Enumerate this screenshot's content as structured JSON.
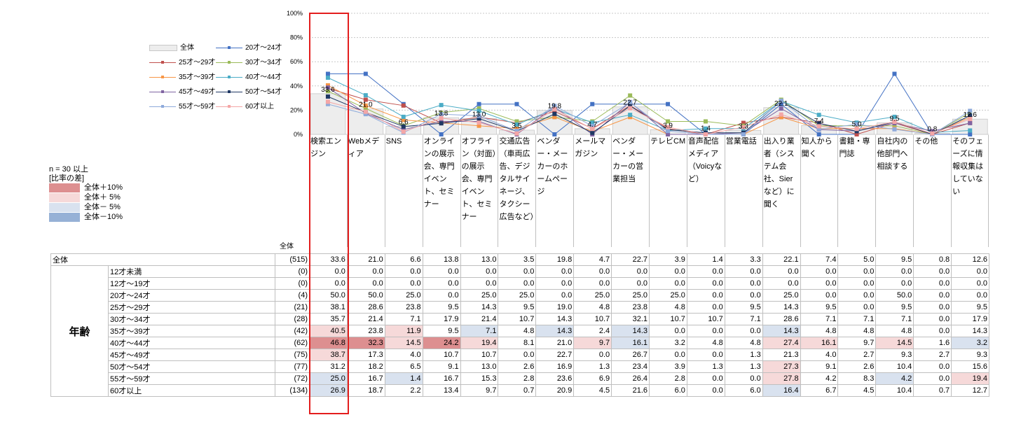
{
  "chart_data": {
    "type": "bar",
    "ylim": [
      0,
      100
    ],
    "yticks": [
      "100%",
      "80%",
      "60%",
      "40%",
      "20%",
      "0%"
    ],
    "categories": [
      "検索エンジン",
      "Webメディア",
      "SNS",
      "オンラインの展示会、専門イベント、セミナー",
      "オフライン（対面）の展示会、専門イベント、セミナー",
      "交通広告（車両広告、デジタルサイネージ、タクシー広告など）",
      "ベンダー・メーカーのホームページ",
      "メールマガジン",
      "ベンダー・メーカーの営業担当",
      "テレビCM",
      "音声配信メディア（Voicyなど）",
      "営業電話",
      "出入り業者（システム会社、Sierなど）に聞く",
      "知人から聞く",
      "書籍・専門誌",
      "自社内の他部門へ相談する",
      "その他",
      "そのフェーズに情報収集はしていない"
    ],
    "overall": {
      "name": "全体",
      "values": [
        33.6,
        21.0,
        6.6,
        13.8,
        13.0,
        3.5,
        19.8,
        4.7,
        22.7,
        3.9,
        1.4,
        3.3,
        22.1,
        7.4,
        5.0,
        9.5,
        0.8,
        12.6
      ]
    },
    "overall_labels": [
      "33.6",
      "21.0",
      "6.6",
      "13.8",
      "13.0",
      "3.5",
      "19.8",
      "4.7",
      "22.7",
      "3.9",
      "1.4",
      "3.3",
      "22.1",
      "7.4",
      "5.0",
      "9.5",
      "0.8",
      "12.6"
    ],
    "series": [
      {
        "name": "20才～24才",
        "color": "#4472c4",
        "values": [
          50.0,
          50.0,
          25.0,
          0.0,
          25.0,
          25.0,
          0.0,
          25.0,
          25.0,
          25.0,
          0.0,
          0.0,
          25.0,
          0.0,
          0.0,
          50.0,
          0.0,
          0.0
        ]
      },
      {
        "name": "25才～29才",
        "color": "#c0504d",
        "values": [
          38.1,
          28.6,
          23.8,
          9.5,
          14.3,
          9.5,
          19.0,
          4.8,
          23.8,
          4.8,
          0.0,
          9.5,
          14.3,
          9.5,
          0.0,
          9.5,
          0.0,
          9.5
        ]
      },
      {
        "name": "30才～34才",
        "color": "#9bbb59",
        "values": [
          35.7,
          21.4,
          7.1,
          17.9,
          21.4,
          10.7,
          14.3,
          10.7,
          32.1,
          10.7,
          10.7,
          7.1,
          28.6,
          7.1,
          7.1,
          7.1,
          0.0,
          17.9
        ]
      },
      {
        "name": "35才～39才",
        "color": "#f79646",
        "values": [
          40.5,
          23.8,
          11.9,
          9.5,
          7.1,
          4.8,
          14.3,
          2.4,
          14.3,
          0.0,
          0.0,
          0.0,
          14.3,
          4.8,
          4.8,
          4.8,
          0.0,
          14.3
        ]
      },
      {
        "name": "40才～44才",
        "color": "#4bacc6",
        "values": [
          46.8,
          32.3,
          14.5,
          24.2,
          19.4,
          8.1,
          21.0,
          9.7,
          16.1,
          3.2,
          4.8,
          4.8,
          27.4,
          16.1,
          9.7,
          14.5,
          1.6,
          3.2
        ]
      },
      {
        "name": "45才～49才",
        "color": "#8064a2",
        "values": [
          38.7,
          17.3,
          4.0,
          10.7,
          10.7,
          0.0,
          22.7,
          0.0,
          26.7,
          0.0,
          0.0,
          1.3,
          21.3,
          4.0,
          2.7,
          9.3,
          2.7,
          9.3
        ]
      },
      {
        "name": "50才～54才",
        "color": "#1f3864",
        "values": [
          31.2,
          18.2,
          6.5,
          9.1,
          13.0,
          2.6,
          16.9,
          1.3,
          23.4,
          3.9,
          1.3,
          1.3,
          27.3,
          9.1,
          2.6,
          10.4,
          0.0,
          15.6
        ]
      },
      {
        "name": "55才～59才",
        "color": "#8eaadb",
        "values": [
          25.0,
          16.7,
          1.4,
          16.7,
          15.3,
          2.8,
          23.6,
          6.9,
          26.4,
          2.8,
          0.0,
          0.0,
          27.8,
          4.2,
          8.3,
          4.2,
          0.0,
          19.4
        ]
      },
      {
        "name": "60才以上",
        "color": "#f4a6a6",
        "values": [
          26.9,
          18.7,
          2.2,
          13.4,
          9.7,
          0.7,
          20.9,
          4.5,
          21.6,
          6.0,
          0.0,
          6.0,
          16.4,
          6.7,
          4.5,
          10.4,
          0.7,
          12.7
        ]
      }
    ],
    "legend": [
      "全体",
      "20才～24才",
      "25才～29才",
      "30才～34才",
      "35才～39才",
      "40才～44才",
      "45才～49才",
      "50才～54才",
      "55才～59才",
      "60才以上"
    ]
  },
  "diff_legend": {
    "title1": "n = 30 以上",
    "title2": "[比率の差]",
    "items": [
      "全体＋10%",
      "全体＋ 5%",
      "全体－ 5%",
      "全体－10%"
    ]
  },
  "table": {
    "n_header": "全体",
    "group_label": "年齢",
    "rows": [
      {
        "label": "全体",
        "n": "(515)",
        "values": [
          "33.6",
          "21.0",
          "6.6",
          "13.8",
          "13.0",
          "3.5",
          "19.8",
          "4.7",
          "22.7",
          "3.9",
          "1.4",
          "3.3",
          "22.1",
          "7.4",
          "5.0",
          "9.5",
          "0.8",
          "12.6"
        ],
        "shade": [
          "",
          "",
          "",
          "",
          "",
          "",
          "",
          "",
          "",
          "",
          "",
          "",
          "",
          "",
          "",
          "",
          "",
          ""
        ]
      },
      {
        "label": "12才未満",
        "n": "(0)",
        "values": [
          "0.0",
          "0.0",
          "0.0",
          "0.0",
          "0.0",
          "0.0",
          "0.0",
          "0.0",
          "0.0",
          "0.0",
          "0.0",
          "0.0",
          "0.0",
          "0.0",
          "0.0",
          "0.0",
          "0.0",
          "0.0"
        ],
        "shade": [
          "",
          "",
          "",
          "",
          "",
          "",
          "",
          "",
          "",
          "",
          "",
          "",
          "",
          "",
          "",
          "",
          "",
          ""
        ]
      },
      {
        "label": "12才～19才",
        "n": "(0)",
        "values": [
          "0.0",
          "0.0",
          "0.0",
          "0.0",
          "0.0",
          "0.0",
          "0.0",
          "0.0",
          "0.0",
          "0.0",
          "0.0",
          "0.0",
          "0.0",
          "0.0",
          "0.0",
          "0.0",
          "0.0",
          "0.0"
        ],
        "shade": [
          "",
          "",
          "",
          "",
          "",
          "",
          "",
          "",
          "",
          "",
          "",
          "",
          "",
          "",
          "",
          "",
          "",
          ""
        ]
      },
      {
        "label": "20才～24才",
        "n": "(4)",
        "values": [
          "50.0",
          "50.0",
          "25.0",
          "0.0",
          "25.0",
          "25.0",
          "0.0",
          "25.0",
          "25.0",
          "25.0",
          "0.0",
          "0.0",
          "25.0",
          "0.0",
          "0.0",
          "50.0",
          "0.0",
          "0.0"
        ],
        "shade": [
          "",
          "",
          "",
          "",
          "",
          "",
          "",
          "",
          "",
          "",
          "",
          "",
          "",
          "",
          "",
          "",
          "",
          ""
        ]
      },
      {
        "label": "25才～29才",
        "n": "(21)",
        "values": [
          "38.1",
          "28.6",
          "23.8",
          "9.5",
          "14.3",
          "9.5",
          "19.0",
          "4.8",
          "23.8",
          "4.8",
          "0.0",
          "9.5",
          "14.3",
          "9.5",
          "0.0",
          "9.5",
          "0.0",
          "9.5"
        ],
        "shade": [
          "",
          "",
          "",
          "",
          "",
          "",
          "",
          "",
          "",
          "",
          "",
          "",
          "",
          "",
          "",
          "",
          "",
          ""
        ]
      },
      {
        "label": "30才～34才",
        "n": "(28)",
        "values": [
          "35.7",
          "21.4",
          "7.1",
          "17.9",
          "21.4",
          "10.7",
          "14.3",
          "10.7",
          "32.1",
          "10.7",
          "10.7",
          "7.1",
          "28.6",
          "7.1",
          "7.1",
          "7.1",
          "0.0",
          "17.9"
        ],
        "shade": [
          "",
          "",
          "",
          "",
          "",
          "",
          "",
          "",
          "",
          "",
          "",
          "",
          "",
          "",
          "",
          "",
          "",
          ""
        ]
      },
      {
        "label": "35才～39才",
        "n": "(42)",
        "values": [
          "40.5",
          "23.8",
          "11.9",
          "9.5",
          "7.1",
          "4.8",
          "14.3",
          "2.4",
          "14.3",
          "0.0",
          "0.0",
          "0.0",
          "14.3",
          "4.8",
          "4.8",
          "4.8",
          "0.0",
          "14.3"
        ],
        "shade": [
          "p5",
          "",
          "p5",
          "",
          "m5",
          "",
          "m5",
          "",
          "m5",
          "",
          "",
          "",
          "m5",
          "",
          "",
          "",
          "",
          ""
        ]
      },
      {
        "label": "40才～44才",
        "n": "(62)",
        "values": [
          "46.8",
          "32.3",
          "14.5",
          "24.2",
          "19.4",
          "8.1",
          "21.0",
          "9.7",
          "16.1",
          "3.2",
          "4.8",
          "4.8",
          "27.4",
          "16.1",
          "9.7",
          "14.5",
          "1.6",
          "3.2"
        ],
        "shade": [
          "p10",
          "p10",
          "p5",
          "p10",
          "p5",
          "",
          "",
          "p5",
          "m5",
          "",
          "",
          "",
          "p5",
          "p5",
          "",
          "p5",
          "",
          "m5"
        ]
      },
      {
        "label": "45才～49才",
        "n": "(75)",
        "values": [
          "38.7",
          "17.3",
          "4.0",
          "10.7",
          "10.7",
          "0.0",
          "22.7",
          "0.0",
          "26.7",
          "0.0",
          "0.0",
          "1.3",
          "21.3",
          "4.0",
          "2.7",
          "9.3",
          "2.7",
          "9.3"
        ],
        "shade": [
          "p5",
          "",
          "",
          "",
          "",
          "",
          "",
          "",
          "",
          "",
          "",
          "",
          "",
          "",
          "",
          "",
          "",
          ""
        ]
      },
      {
        "label": "50才～54才",
        "n": "(77)",
        "values": [
          "31.2",
          "18.2",
          "6.5",
          "9.1",
          "13.0",
          "2.6",
          "16.9",
          "1.3",
          "23.4",
          "3.9",
          "1.3",
          "1.3",
          "27.3",
          "9.1",
          "2.6",
          "10.4",
          "0.0",
          "15.6"
        ],
        "shade": [
          "",
          "",
          "",
          "",
          "",
          "",
          "",
          "",
          "",
          "",
          "",
          "",
          "p5",
          "",
          "",
          "",
          "",
          ""
        ]
      },
      {
        "label": "55才～59才",
        "n": "(72)",
        "values": [
          "25.0",
          "16.7",
          "1.4",
          "16.7",
          "15.3",
          "2.8",
          "23.6",
          "6.9",
          "26.4",
          "2.8",
          "0.0",
          "0.0",
          "27.8",
          "4.2",
          "8.3",
          "4.2",
          "0.0",
          "19.4"
        ],
        "shade": [
          "m5",
          "",
          "m5",
          "",
          "",
          "",
          "",
          "",
          "",
          "",
          "",
          "",
          "p5",
          "",
          "",
          "m5",
          "",
          "p5"
        ]
      },
      {
        "label": "60才以上",
        "n": "(134)",
        "values": [
          "26.9",
          "18.7",
          "2.2",
          "13.4",
          "9.7",
          "0.7",
          "20.9",
          "4.5",
          "21.6",
          "6.0",
          "0.0",
          "6.0",
          "16.4",
          "6.7",
          "4.5",
          "10.4",
          "0.7",
          "12.7"
        ],
        "shade": [
          "m5",
          "",
          "",
          "",
          "",
          "",
          "",
          "",
          "",
          "",
          "",
          "",
          "m5",
          "",
          "",
          "",
          "",
          ""
        ]
      }
    ]
  }
}
